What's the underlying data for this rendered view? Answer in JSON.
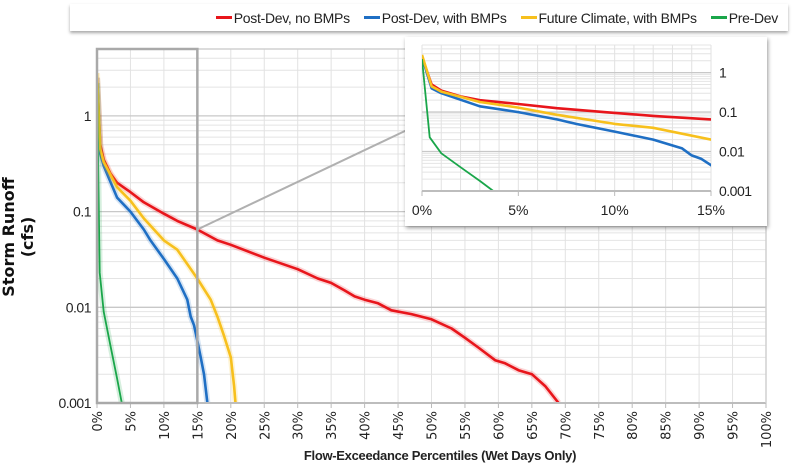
{
  "chart_data": [
    {
      "type": "line",
      "ylabel": "Storm Runoff (cfs)",
      "xlabel": "Flow-Exceedance Percentiles (Wet Days Only)",
      "xscale": "linear",
      "yscale": "log",
      "xlim": [
        0,
        100
      ],
      "ylim": [
        0.001,
        5
      ],
      "x_ticks": [
        "0%",
        "5%",
        "10%",
        "15%",
        "20%",
        "25%",
        "30%",
        "35%",
        "40%",
        "45%",
        "50%",
        "55%",
        "60%",
        "65%",
        "70%",
        "75%",
        "80%",
        "85%",
        "90%",
        "95%",
        "100%"
      ],
      "y_ticks": [
        "0.001",
        "0.01",
        "0.1",
        "1"
      ],
      "grid": true,
      "legend_placement": "top",
      "zoom_region": {
        "x": [
          0,
          15
        ],
        "y": [
          0.001,
          5
        ]
      },
      "series": [
        {
          "name": "Post-Dev, no BMPs",
          "color": "#e8151b",
          "x": [
            0,
            0.5,
            1,
            2,
            3,
            5,
            7,
            10,
            12,
            15,
            18,
            20,
            25,
            30,
            33,
            35,
            37,
            38.5,
            40,
            42,
            44,
            47,
            50,
            53,
            55,
            57,
            59.5,
            61,
            63,
            65,
            67,
            69
          ],
          "y": [
            2.5,
            0.5,
            0.35,
            0.25,
            0.2,
            0.16,
            0.125,
            0.095,
            0.08,
            0.065,
            0.05,
            0.045,
            0.033,
            0.025,
            0.02,
            0.018,
            0.015,
            0.013,
            0.012,
            0.011,
            0.0093,
            0.0085,
            0.0075,
            0.006,
            0.0048,
            0.0038,
            0.0028,
            0.0026,
            0.0022,
            0.002,
            0.0015,
            0.001
          ]
        },
        {
          "name": "Post-Dev, with BMPs",
          "color": "#1f6fc4",
          "x": [
            0,
            0.5,
            1,
            3,
            5,
            7,
            8,
            10,
            12,
            13.5,
            14,
            14.5,
            15,
            15.5,
            16,
            16.5
          ],
          "y": [
            2.5,
            0.4,
            0.3,
            0.14,
            0.1,
            0.065,
            0.05,
            0.032,
            0.02,
            0.012,
            0.008,
            0.0065,
            0.0045,
            0.003,
            0.002,
            0.001
          ]
        },
        {
          "name": "Future Climate, with BMPs",
          "color": "#f7c01d",
          "x": [
            0,
            0.5,
            1,
            3,
            5,
            7,
            10,
            12,
            15,
            17,
            18,
            19,
            20,
            20.5,
            20.7
          ],
          "y": [
            2.8,
            0.45,
            0.33,
            0.18,
            0.13,
            0.085,
            0.05,
            0.04,
            0.02,
            0.012,
            0.008,
            0.005,
            0.003,
            0.0015,
            0.001
          ]
        },
        {
          "name": "Pre-Dev",
          "color": "#1aa64a",
          "x": [
            0,
            0.4,
            1,
            2,
            3,
            3.7
          ],
          "y": [
            2.2,
            0.023,
            0.009,
            0.004,
            0.0018,
            0.001
          ]
        }
      ]
    },
    {
      "type": "line",
      "yscale": "log",
      "xlim": [
        0,
        15
      ],
      "ylim": [
        0.001,
        5
      ],
      "x_ticks": [
        "0%",
        "5%",
        "10%",
        "15%"
      ],
      "y_ticks": [
        "0.001",
        "0.01",
        "0.1",
        "1"
      ],
      "grid": true,
      "note_series": "same series as main chart, zoomed to 0-15%"
    }
  ]
}
